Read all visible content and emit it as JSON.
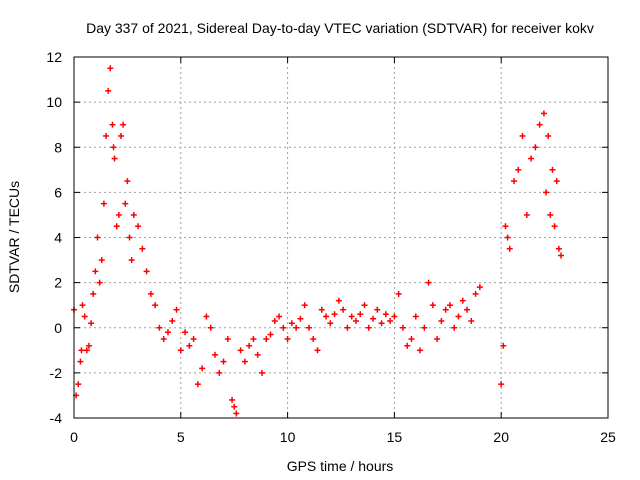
{
  "chart_data": {
    "type": "scatter",
    "title": "Day 337 of 2021, Sidereal Day-to-day VTEC variation (SDTVAR) for receiver kokv",
    "xlabel": "GPS time / hours",
    "ylabel": "SDTVAR / TECUs",
    "xlim": [
      0,
      25
    ],
    "ylim": [
      -4,
      12
    ],
    "x_ticks": [
      0,
      5,
      10,
      15,
      20,
      25
    ],
    "y_ticks": [
      -4,
      -2,
      0,
      2,
      4,
      6,
      8,
      10,
      12
    ],
    "grid": true,
    "marker": "+",
    "series": [
      {
        "name": "SDTVAR",
        "color": "#ff0000",
        "x": [
          0.0,
          0.1,
          0.2,
          0.3,
          0.35,
          0.4,
          0.5,
          0.6,
          0.7,
          0.8,
          0.9,
          1.0,
          1.1,
          1.2,
          1.3,
          1.4,
          1.5,
          1.6,
          1.7,
          1.8,
          1.85,
          1.9,
          2.0,
          2.1,
          2.2,
          2.3,
          2.4,
          2.5,
          2.6,
          2.7,
          2.8,
          3.0,
          3.2,
          3.4,
          3.6,
          3.8,
          4.0,
          4.2,
          4.4,
          4.6,
          4.8,
          5.0,
          5.2,
          5.4,
          5.6,
          5.8,
          6.0,
          6.2,
          6.4,
          6.6,
          6.8,
          7.0,
          7.2,
          7.4,
          7.5,
          7.6,
          7.8,
          8.0,
          8.2,
          8.4,
          8.6,
          8.8,
          9.0,
          9.2,
          9.4,
          9.6,
          9.8,
          10.0,
          10.2,
          10.4,
          10.6,
          10.8,
          11.0,
          11.2,
          11.4,
          11.6,
          11.8,
          12.0,
          12.2,
          12.4,
          12.6,
          12.8,
          13.0,
          13.2,
          13.4,
          13.6,
          13.8,
          14.0,
          14.2,
          14.4,
          14.6,
          14.8,
          15.0,
          15.2,
          15.4,
          15.6,
          15.8,
          16.0,
          16.2,
          16.4,
          16.6,
          16.8,
          17.0,
          17.2,
          17.4,
          17.6,
          17.8,
          18.0,
          18.2,
          18.4,
          18.6,
          18.8,
          19.0,
          20.0,
          20.1,
          20.2,
          20.3,
          20.4,
          20.6,
          20.8,
          21.0,
          21.2,
          21.4,
          21.6,
          21.8,
          22.0,
          22.1,
          22.2,
          22.3,
          22.4,
          22.5,
          22.6,
          22.7,
          22.8
        ],
        "y": [
          0.8,
          -3.0,
          -2.5,
          -1.5,
          -1.0,
          1.0,
          0.5,
          -1.0,
          -0.8,
          0.2,
          1.5,
          2.5,
          4.0,
          2.0,
          3.0,
          5.5,
          8.5,
          10.5,
          11.5,
          9.0,
          8.0,
          7.5,
          4.5,
          5.0,
          8.5,
          9.0,
          5.5,
          6.5,
          4.0,
          3.0,
          5.0,
          4.5,
          3.5,
          2.5,
          1.5,
          1.0,
          0.0,
          -0.5,
          -0.2,
          0.3,
          0.8,
          -1.0,
          -0.2,
          -0.8,
          -0.5,
          -2.5,
          -1.8,
          0.5,
          0.0,
          -1.2,
          -2.0,
          -1.5,
          -0.5,
          -3.2,
          -3.5,
          -3.8,
          -1.0,
          -1.5,
          -0.8,
          -0.5,
          -1.2,
          -2.0,
          -0.5,
          -0.3,
          0.3,
          0.5,
          0.0,
          -0.5,
          0.2,
          0.0,
          0.4,
          1.0,
          0.0,
          -0.5,
          -1.0,
          0.8,
          0.5,
          0.2,
          0.6,
          1.2,
          0.8,
          0.0,
          0.5,
          0.3,
          0.6,
          1.0,
          0.0,
          0.4,
          0.8,
          0.2,
          0.6,
          0.3,
          0.5,
          1.5,
          0.0,
          -0.8,
          -0.5,
          0.5,
          -1.0,
          0.0,
          2.0,
          1.0,
          -0.5,
          0.3,
          0.8,
          1.0,
          0.0,
          0.5,
          1.2,
          0.8,
          0.3,
          1.5,
          1.8,
          -2.5,
          -0.8,
          4.5,
          4.0,
          3.5,
          6.5,
          7.0,
          8.5,
          5.0,
          7.5,
          8.0,
          9.0,
          9.5,
          6.0,
          8.5,
          5.0,
          7.0,
          4.5,
          6.5,
          3.5,
          3.2
        ]
      }
    ]
  }
}
